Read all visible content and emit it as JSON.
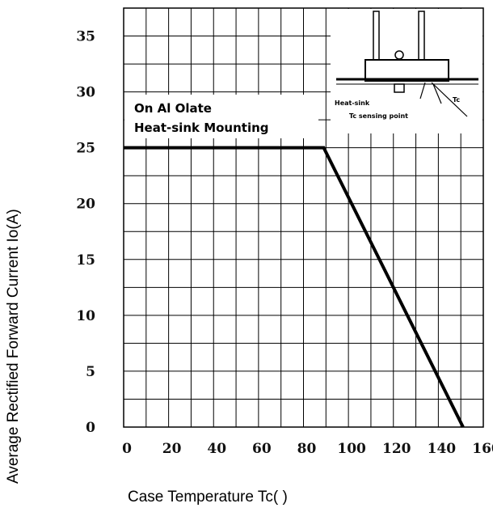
{
  "chart_data": {
    "type": "line",
    "xlabel": "Case Temperature Tc(   )",
    "ylabel": "Average Rectified Forward Current Io(A)",
    "x_ticks": [
      "0",
      "20",
      "40",
      "60",
      "80",
      "100",
      "120",
      "140",
      "160"
    ],
    "y_ticks": [
      "0",
      "5",
      "10",
      "15",
      "20",
      "25",
      "30",
      "35"
    ],
    "xlim": [
      0,
      160
    ],
    "ylim": [
      0,
      37.5
    ],
    "grid": true,
    "series": [
      {
        "x": [
          0,
          89,
          151
        ],
        "y": [
          25,
          25,
          0
        ]
      }
    ],
    "annotations": {
      "line1": "On Al Olate",
      "line2": "Heat-sink Mounting"
    },
    "inset": {
      "label_heatsink": "Heat-sink",
      "label_tc": "Tc",
      "label_sensing": "Tc sensing point"
    }
  }
}
